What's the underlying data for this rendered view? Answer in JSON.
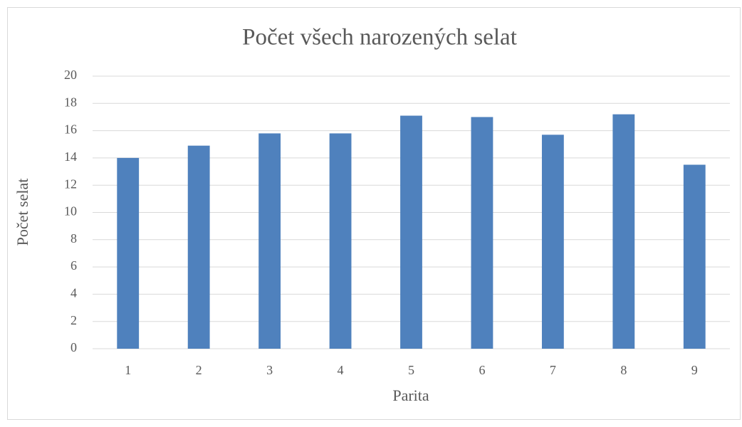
{
  "chart_data": {
    "type": "bar",
    "title": "Počet všech narozených selat",
    "x_label": "Parita",
    "y_label": "Počet selat",
    "categories": [
      "1",
      "2",
      "3",
      "4",
      "5",
      "6",
      "7",
      "8",
      "9"
    ],
    "values": [
      14.0,
      14.9,
      15.8,
      15.8,
      17.1,
      17.0,
      15.7,
      17.2,
      13.5
    ],
    "color": "#4f81bd",
    "ylim": [
      0,
      20
    ],
    "yticks": [
      0,
      2,
      4,
      6,
      8,
      10,
      12,
      14,
      16,
      18,
      20
    ],
    "grid": true
  }
}
